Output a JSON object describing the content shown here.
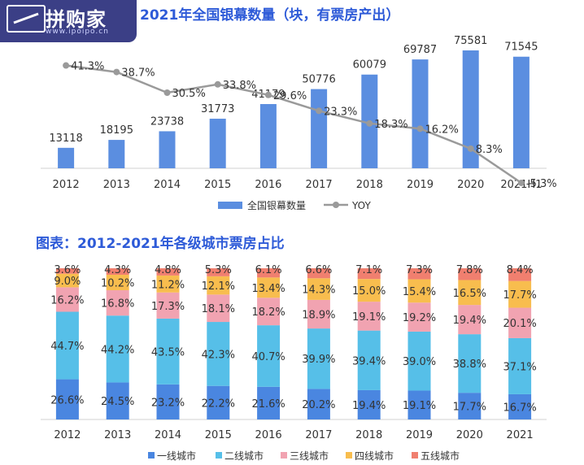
{
  "logo": {
    "name": "拼购家",
    "url": "www.ipoipo.cn"
  },
  "chart_data": [
    {
      "type": "bar+line",
      "title": "2021年全国银幕数量（块，有票房产出）",
      "categories": [
        "2012",
        "2013",
        "2014",
        "2015",
        "2016",
        "2017",
        "2018",
        "2019",
        "2020",
        "2021H1"
      ],
      "series": [
        {
          "name": "全国银幕数量",
          "type": "bar",
          "color": "#5b8ee0",
          "values": [
            13118,
            18195,
            23738,
            31773,
            41179,
            50776,
            60079,
            69787,
            75581,
            71545
          ]
        },
        {
          "name": "YOY",
          "type": "line",
          "color": "#9a9a9a",
          "values": [
            41.3,
            38.7,
            30.5,
            33.8,
            29.6,
            23.3,
            18.3,
            16.2,
            8.3,
            -5.3
          ],
          "labels": [
            "41.3%",
            "38.7%",
            "30.5%",
            "33.8%",
            "29.6%",
            "23.3%",
            "18.3%",
            "16.2%",
            "8.3%",
            "-5.3%"
          ]
        }
      ],
      "legend": "bottom"
    },
    {
      "type": "stacked-bar",
      "title": "图表：2012-2021年各级城市票房占比",
      "categories": [
        "2012",
        "2013",
        "2014",
        "2015",
        "2016",
        "2017",
        "2018",
        "2019",
        "2020",
        "2021"
      ],
      "series": [
        {
          "name": "一线城市",
          "color": "#4a86e0",
          "values": [
            26.6,
            24.5,
            23.2,
            22.2,
            21.6,
            20.2,
            19.4,
            19.1,
            17.7,
            16.7
          ]
        },
        {
          "name": "二线城市",
          "color": "#56bfe8",
          "values": [
            44.7,
            44.2,
            43.5,
            42.3,
            40.7,
            39.9,
            39.4,
            39.0,
            38.8,
            37.1
          ]
        },
        {
          "name": "三线城市",
          "color": "#f1a3b1",
          "values": [
            16.2,
            16.8,
            17.3,
            18.1,
            18.2,
            18.9,
            19.1,
            19.2,
            19.4,
            20.1
          ]
        },
        {
          "name": "四线城市",
          "color": "#f8bd4e",
          "values": [
            9.0,
            10.2,
            11.2,
            12.1,
            13.4,
            14.3,
            15.0,
            15.4,
            16.5,
            17.7
          ]
        },
        {
          "name": "五线城市",
          "color": "#f07f6f",
          "values": [
            3.6,
            4.3,
            4.8,
            5.3,
            6.1,
            6.6,
            7.1,
            7.3,
            7.8,
            8.4
          ]
        }
      ],
      "ylim": [
        0,
        100
      ],
      "legend": "bottom"
    }
  ]
}
